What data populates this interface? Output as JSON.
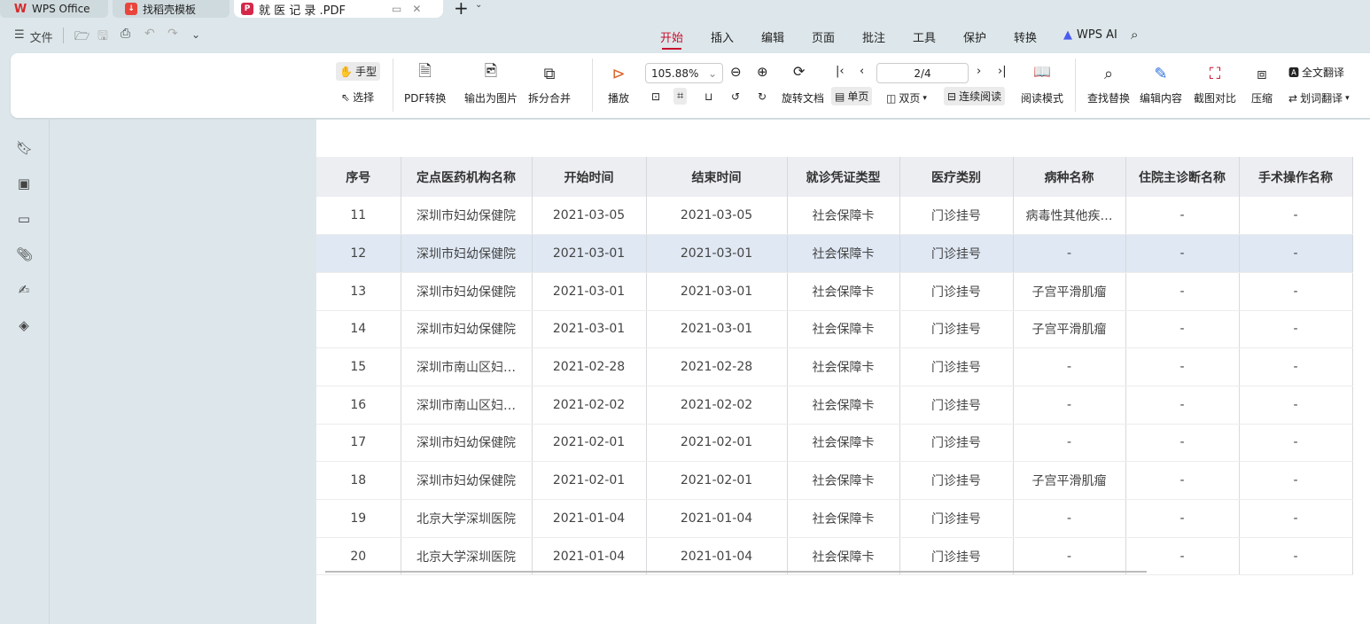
{
  "tabs": [
    {
      "label": "WPS Office",
      "icon": "wps-logo"
    },
    {
      "label": "找稻壳模板",
      "icon": "docer-logo"
    },
    {
      "label": "就 医 记 录 .PDF",
      "icon": "pdf-logo",
      "active": true
    }
  ],
  "menu": {
    "file": "文件"
  },
  "ribbon_tabs": [
    "开始",
    "插入",
    "编辑",
    "页面",
    "批注",
    "工具",
    "保护",
    "转换",
    "WPS AI"
  ],
  "toolbar": {
    "hand": "手型",
    "select": "选择",
    "pdf_convert": "PDF转换",
    "export_image": "输出为图片",
    "split_merge": "拆分合并",
    "play": "播放",
    "zoom": "105.88%",
    "page": "2/4",
    "rotate": "旋转文档",
    "single": "单页",
    "double": "双页",
    "continuous": "连续阅读",
    "read_mode": "阅读模式",
    "find_replace": "查找替换",
    "edit_content": "编辑内容",
    "screenshot_compare": "截图对比",
    "compress": "压缩",
    "full_translate": "全文翻译",
    "word_translate": "划词翻译"
  },
  "colors": {
    "accent": "#c8102e",
    "highlight_row": "#dfe8f3"
  },
  "table": {
    "headers": [
      "序号",
      "定点医药机构名称",
      "开始时间",
      "结束时间",
      "就诊凭证类型",
      "医疗类别",
      "病种名称",
      "住院主诊断名称",
      "手术操作名称"
    ],
    "rows": [
      [
        "11",
        "深圳市妇幼保健院",
        "2021-03-05",
        "2021-03-05",
        "社会保障卡",
        "门诊挂号",
        "病毒性其他疾…",
        "-",
        "-"
      ],
      [
        "12",
        "深圳市妇幼保健院",
        "2021-03-01",
        "2021-03-01",
        "社会保障卡",
        "门诊挂号",
        "-",
        "-",
        "-"
      ],
      [
        "13",
        "深圳市妇幼保健院",
        "2021-03-01",
        "2021-03-01",
        "社会保障卡",
        "门诊挂号",
        "子宫平滑肌瘤",
        "-",
        "-"
      ],
      [
        "14",
        "深圳市妇幼保健院",
        "2021-03-01",
        "2021-03-01",
        "社会保障卡",
        "门诊挂号",
        "子宫平滑肌瘤",
        "-",
        "-"
      ],
      [
        "15",
        "深圳市南山区妇…",
        "2021-02-28",
        "2021-02-28",
        "社会保障卡",
        "门诊挂号",
        "-",
        "-",
        "-"
      ],
      [
        "16",
        "深圳市南山区妇…",
        "2021-02-02",
        "2021-02-02",
        "社会保障卡",
        "门诊挂号",
        "-",
        "-",
        "-"
      ],
      [
        "17",
        "深圳市妇幼保健院",
        "2021-02-01",
        "2021-02-01",
        "社会保障卡",
        "门诊挂号",
        "-",
        "-",
        "-"
      ],
      [
        "18",
        "深圳市妇幼保健院",
        "2021-02-01",
        "2021-02-01",
        "社会保障卡",
        "门诊挂号",
        "子宫平滑肌瘤",
        "-",
        "-"
      ],
      [
        "19",
        "北京大学深圳医院",
        "2021-01-04",
        "2021-01-04",
        "社会保障卡",
        "门诊挂号",
        "-",
        "-",
        "-"
      ],
      [
        "20",
        "北京大学深圳医院",
        "2021-01-04",
        "2021-01-04",
        "社会保障卡",
        "门诊挂号",
        "-",
        "-",
        "-"
      ]
    ],
    "highlighted_row": 1
  }
}
